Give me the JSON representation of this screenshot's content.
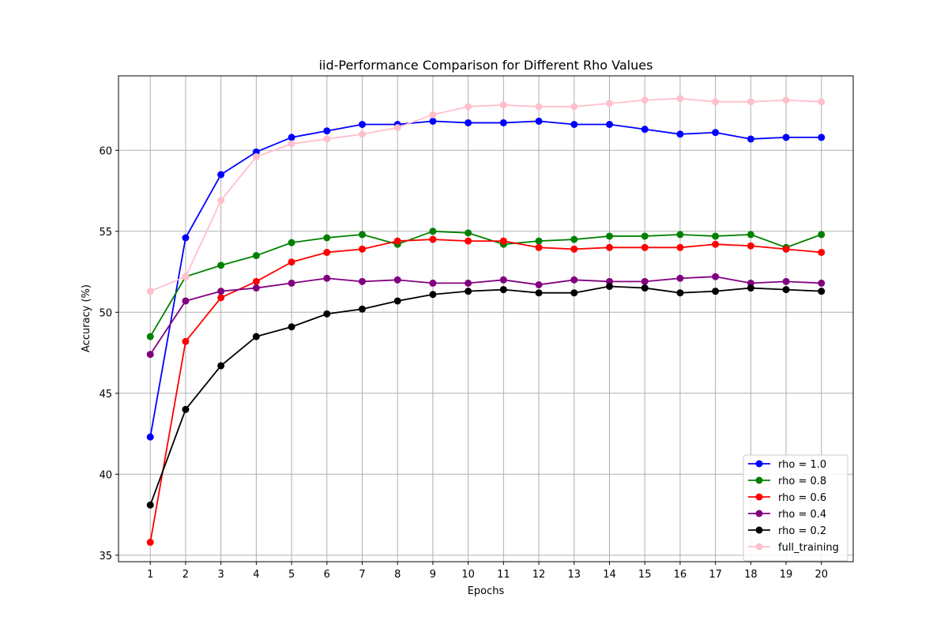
{
  "chart_data": {
    "type": "line",
    "title": "iid-Performance Comparison for Different Rho Values",
    "xlabel": "Epochs",
    "ylabel": "Accuracy (%)",
    "x": [
      1,
      2,
      3,
      4,
      5,
      6,
      7,
      8,
      9,
      10,
      11,
      12,
      13,
      14,
      15,
      16,
      17,
      18,
      19,
      20
    ],
    "xlim": [
      0.1,
      20.9
    ],
    "ylim": [
      34.6,
      64.6
    ],
    "yticks": [
      35,
      40,
      45,
      50,
      55,
      60
    ],
    "grid": true,
    "legend_position": "lower-right",
    "series": [
      {
        "name": "rho = 1.0",
        "color": "#0000ff",
        "marker": "circle",
        "values": [
          42.3,
          54.6,
          58.5,
          59.9,
          60.8,
          61.2,
          61.6,
          61.6,
          61.8,
          61.7,
          61.7,
          61.8,
          61.6,
          61.6,
          61.3,
          61.0,
          61.1,
          60.7,
          60.8,
          60.8
        ]
      },
      {
        "name": "rho = 0.8",
        "color": "#008000",
        "marker": "circle",
        "values": [
          48.5,
          52.2,
          52.9,
          53.5,
          54.3,
          54.6,
          54.8,
          54.2,
          55.0,
          54.9,
          54.2,
          54.4,
          54.5,
          54.7,
          54.7,
          54.8,
          54.7,
          54.8,
          54.0,
          54.8
        ]
      },
      {
        "name": "rho = 0.6",
        "color": "#ff0000",
        "marker": "circle",
        "values": [
          35.8,
          48.2,
          50.9,
          51.9,
          53.1,
          53.7,
          53.9,
          54.4,
          54.5,
          54.4,
          54.4,
          54.0,
          53.9,
          54.0,
          54.0,
          54.0,
          54.2,
          54.1,
          53.9,
          53.7
        ]
      },
      {
        "name": "rho = 0.4",
        "color": "#800080",
        "marker": "circle",
        "values": [
          47.4,
          50.7,
          51.3,
          51.5,
          51.8,
          52.1,
          51.9,
          52.0,
          51.8,
          51.8,
          52.0,
          51.7,
          52.0,
          51.9,
          51.9,
          52.1,
          52.2,
          51.8,
          51.9,
          51.8
        ]
      },
      {
        "name": "rho = 0.2",
        "color": "#000000",
        "marker": "circle",
        "values": [
          38.1,
          44.0,
          46.7,
          48.5,
          49.1,
          49.9,
          50.2,
          50.7,
          51.1,
          51.3,
          51.4,
          51.2,
          51.2,
          51.6,
          51.5,
          51.2,
          51.3,
          51.5,
          51.4,
          51.3
        ]
      },
      {
        "name": "full_training",
        "color": "#ffc0cb",
        "marker": "circle",
        "values": [
          51.3,
          52.2,
          56.9,
          59.6,
          60.4,
          60.7,
          61.0,
          61.4,
          62.2,
          62.7,
          62.8,
          62.7,
          62.7,
          62.9,
          63.1,
          63.2,
          63.0,
          63.0,
          63.1,
          63.0
        ]
      }
    ]
  }
}
